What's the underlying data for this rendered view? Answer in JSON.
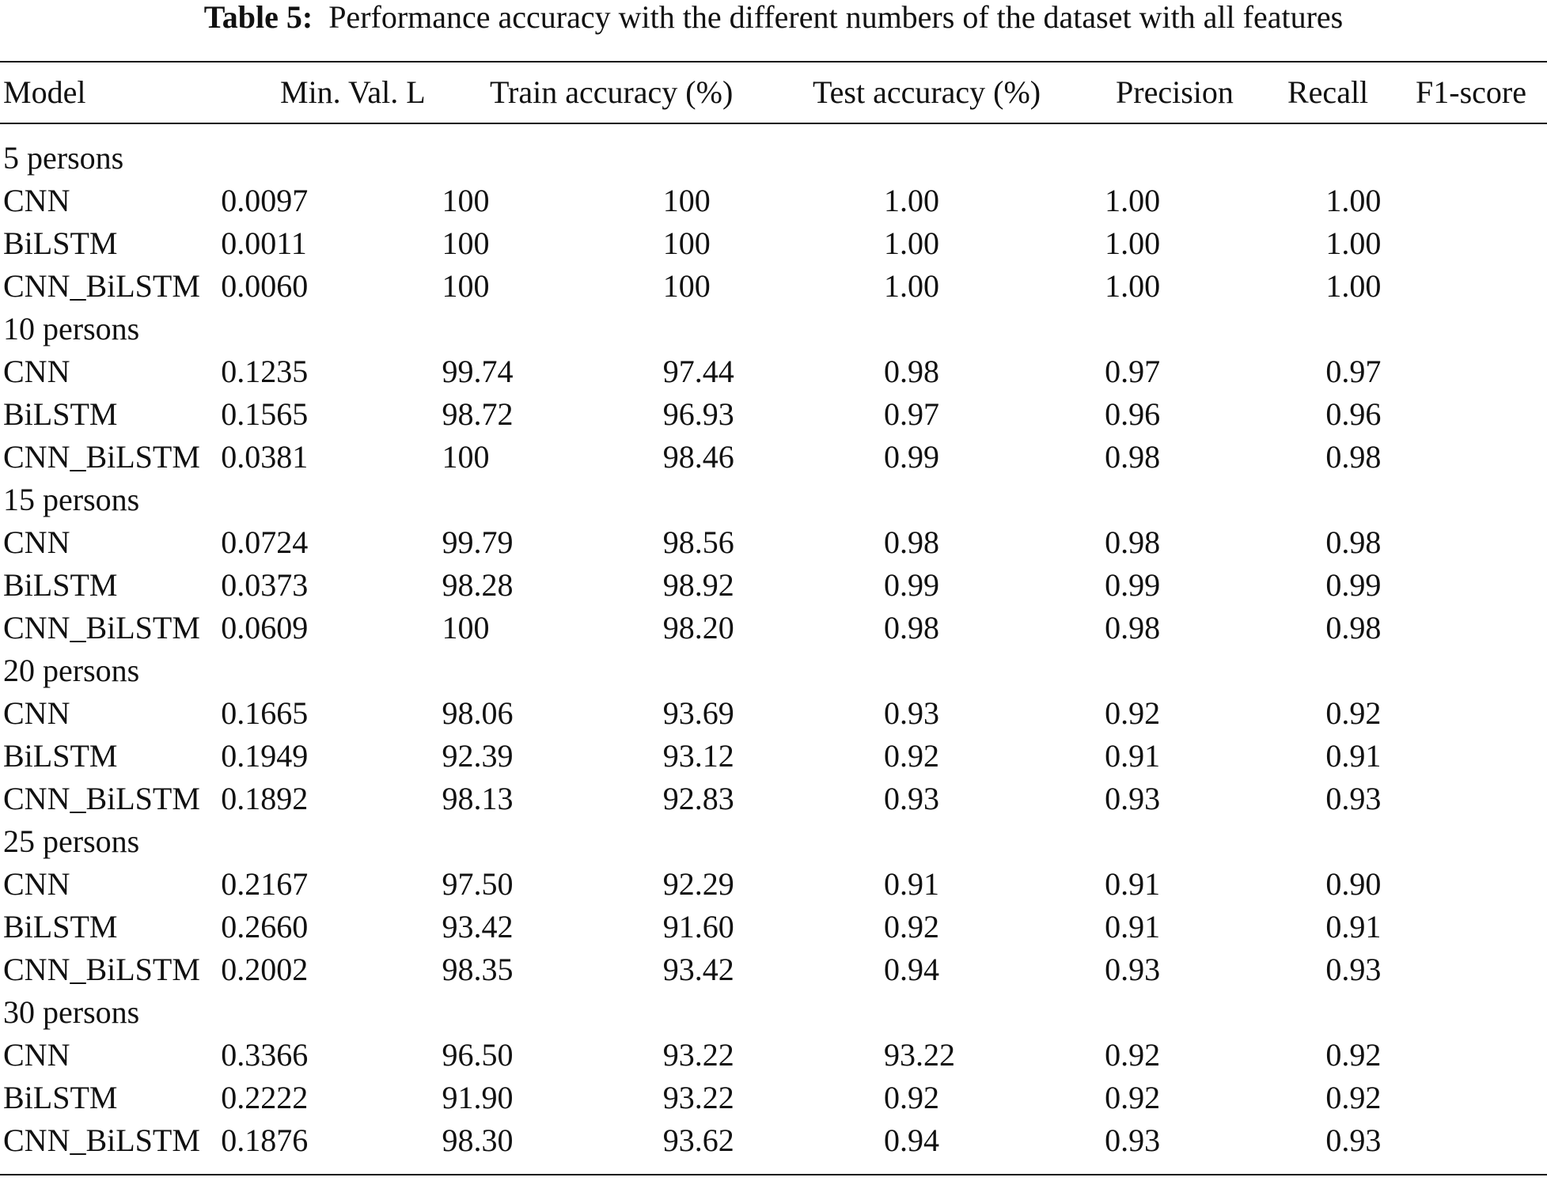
{
  "caption": {
    "label": "Table 5:",
    "text": "Performance accuracy with the different numbers of the dataset with all features"
  },
  "columns": [
    "Model",
    "Min. Val. L",
    "Train accuracy (%)",
    "Test accuracy (%)",
    "Precision",
    "Recall",
    "F1-score"
  ],
  "groups": [
    {
      "label": "5 persons",
      "rows": [
        [
          "CNN",
          "0.0097",
          "100",
          "100",
          "1.00",
          "1.00",
          "1.00"
        ],
        [
          "BiLSTM",
          "0.0011",
          "100",
          "100",
          "1.00",
          "1.00",
          "1.00"
        ],
        [
          "CNN_BiLSTM",
          "0.0060",
          "100",
          "100",
          "1.00",
          "1.00",
          "1.00"
        ]
      ]
    },
    {
      "label": "10 persons",
      "rows": [
        [
          "CNN",
          "0.1235",
          "99.74",
          "97.44",
          "0.98",
          "0.97",
          "0.97"
        ],
        [
          "BiLSTM",
          "0.1565",
          "98.72",
          "96.93",
          "0.97",
          "0.96",
          "0.96"
        ],
        [
          "CNN_BiLSTM",
          "0.0381",
          "100",
          "98.46",
          "0.99",
          "0.98",
          "0.98"
        ]
      ]
    },
    {
      "label": "15 persons",
      "rows": [
        [
          "CNN",
          "0.0724",
          "99.79",
          "98.56",
          "0.98",
          "0.98",
          "0.98"
        ],
        [
          "BiLSTM",
          "0.0373",
          "98.28",
          "98.92",
          "0.99",
          "0.99",
          "0.99"
        ],
        [
          "CNN_BiLSTM",
          "0.0609",
          "100",
          "98.20",
          "0.98",
          "0.98",
          "0.98"
        ]
      ]
    },
    {
      "label": "20 persons",
      "rows": [
        [
          "CNN",
          "0.1665",
          "98.06",
          "93.69",
          "0.93",
          "0.92",
          "0.92"
        ],
        [
          "BiLSTM",
          "0.1949",
          "92.39",
          "93.12",
          "0.92",
          "0.91",
          "0.91"
        ],
        [
          "CNN_BiLSTM",
          "0.1892",
          "98.13",
          "92.83",
          "0.93",
          "0.93",
          "0.93"
        ]
      ]
    },
    {
      "label": "25 persons",
      "rows": [
        [
          "CNN",
          "0.2167",
          "97.50",
          "92.29",
          "0.91",
          "0.91",
          "0.90"
        ],
        [
          "BiLSTM",
          "0.2660",
          "93.42",
          "91.60",
          "0.92",
          "0.91",
          "0.91"
        ],
        [
          "CNN_BiLSTM",
          "0.2002",
          "98.35",
          "93.42",
          "0.94",
          "0.93",
          "0.93"
        ]
      ]
    },
    {
      "label": "30 persons",
      "rows": [
        [
          "CNN",
          "0.3366",
          "96.50",
          "93.22",
          "93.22",
          "0.92",
          "0.92"
        ],
        [
          "BiLSTM",
          "0.2222",
          "91.90",
          "93.22",
          "0.92",
          "0.92",
          "0.92"
        ],
        [
          "CNN_BiLSTM",
          "0.1876",
          "98.30",
          "93.62",
          "0.94",
          "0.93",
          "0.93"
        ]
      ]
    }
  ]
}
